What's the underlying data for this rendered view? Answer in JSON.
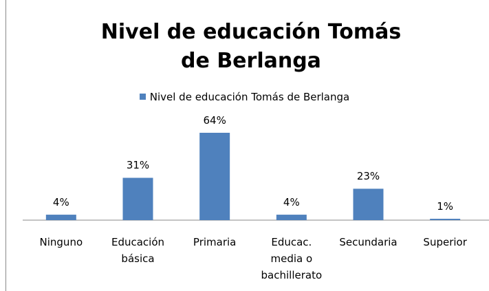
{
  "chart_data": {
    "type": "bar",
    "title": "Nivel de educación Tomás de Berlanga",
    "categories": [
      "Ninguno",
      "Educación básica",
      "Primaria",
      "Educac. media o bachillerato",
      "Secundaria",
      "Superior"
    ],
    "series": [
      {
        "name": "Nivel de educación Tomás de Berlanga",
        "color": "#4f81bd",
        "values": [
          4,
          31,
          64,
          4,
          23,
          1
        ],
        "value_labels": [
          "4%",
          "31%",
          "64%",
          "4%",
          "23%",
          "1%"
        ]
      }
    ],
    "legend": "top"
  }
}
